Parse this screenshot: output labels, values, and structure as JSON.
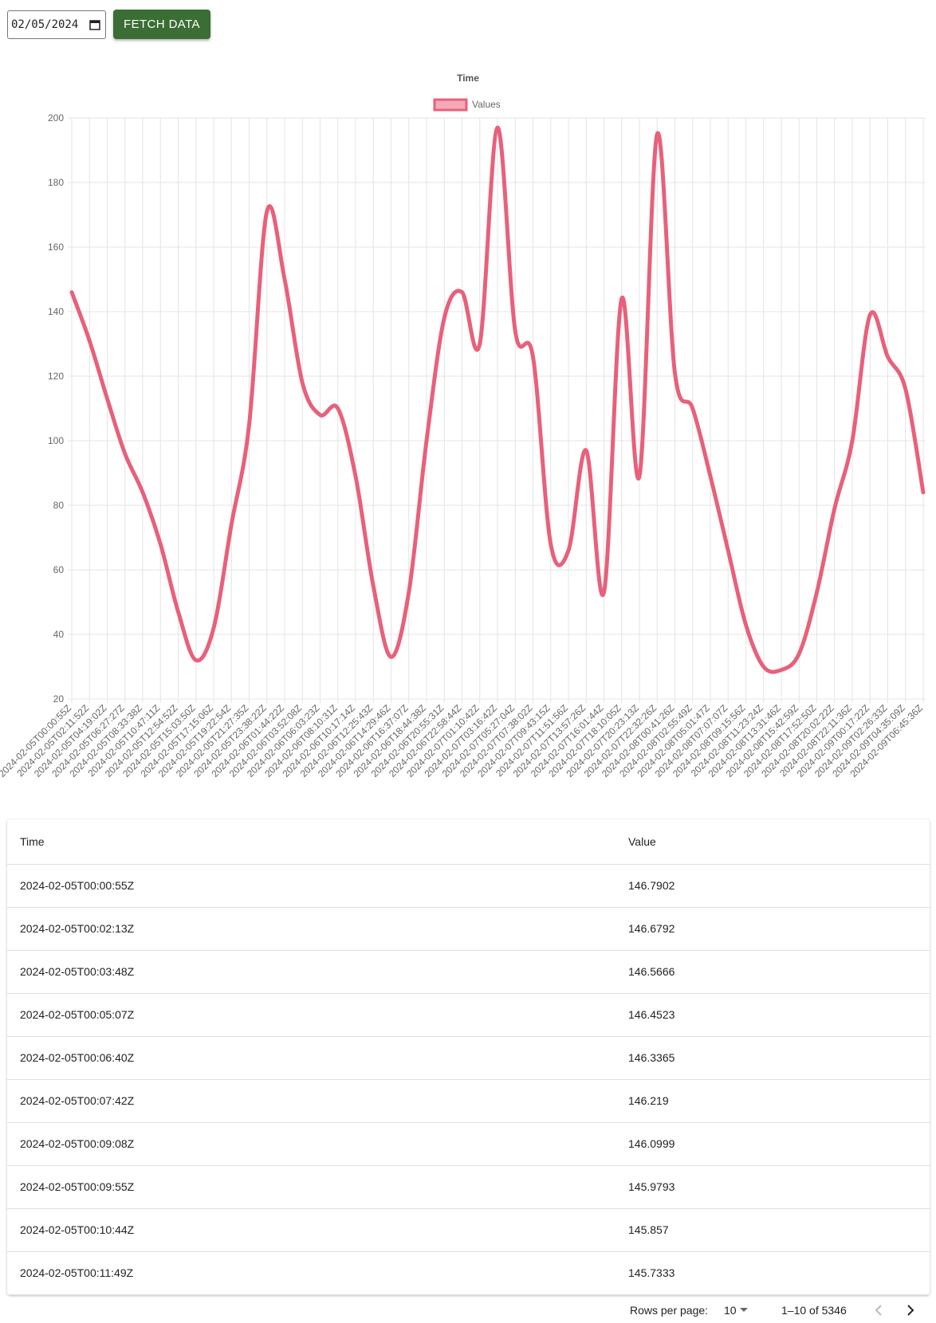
{
  "controls": {
    "date": "02/05/2024",
    "button": "FETCH DATA"
  },
  "chart_data": {
    "type": "line",
    "title": "Time",
    "categories": [
      "2024-02-05T00:00:55Z",
      "2024-02-05T02:11:52Z",
      "2024-02-05T04:19:02Z",
      "2024-02-05T06:27:27Z",
      "2024-02-05T08:33:38Z",
      "2024-02-05T10:47:11Z",
      "2024-02-05T12:54:52Z",
      "2024-02-05T15:03:50Z",
      "2024-02-05T17:15:06Z",
      "2024-02-05T19:22:54Z",
      "2024-02-05T21:27:35Z",
      "2024-02-05T23:38:22Z",
      "2024-02-06T01:44:22Z",
      "2024-02-06T03:52:08Z",
      "2024-02-06T06:03:23Z",
      "2024-02-06T08:10:31Z",
      "2024-02-06T10:17:14Z",
      "2024-02-06T12:25:43Z",
      "2024-02-06T14:29:46Z",
      "2024-02-06T16:37:07Z",
      "2024-02-06T18:44:38Z",
      "2024-02-06T20:55:31Z",
      "2024-02-06T22:58:44Z",
      "2024-02-07T01:10:42Z",
      "2024-02-07T03:16:42Z",
      "2024-02-07T05:27:04Z",
      "2024-02-07T07:38:02Z",
      "2024-02-07T09:43:15Z",
      "2024-02-07T11:51:56Z",
      "2024-02-07T13:57:26Z",
      "2024-02-07T16:01:44Z",
      "2024-02-07T18:10:05Z",
      "2024-02-07T20:23:13Z",
      "2024-02-07T22:32:26Z",
      "2024-02-08T00:41:26Z",
      "2024-02-08T02:55:49Z",
      "2024-02-08T05:01:47Z",
      "2024-02-08T07:07:07Z",
      "2024-02-08T09:15:56Z",
      "2024-02-08T11:23:24Z",
      "2024-02-08T13:31:46Z",
      "2024-02-08T15:42:59Z",
      "2024-02-08T17:52:50Z",
      "2024-02-08T20:02:22Z",
      "2024-02-08T22:11:36Z",
      "2024-02-09T00:17:22Z",
      "2024-02-09T02:26:33Z",
      "2024-02-09T04:35:09Z",
      "2024-02-09T06:45:36Z"
    ],
    "series": [
      {
        "name": "Values",
        "color": "#e8607a",
        "fill": "#f4a9b8",
        "values": [
          146,
          131,
          113,
          96,
          84,
          68,
          47,
          32,
          42,
          74,
          105,
          171,
          150,
          118,
          108,
          110,
          89,
          55,
          33,
          53,
          100,
          138,
          146,
          130,
          197,
          134,
          126,
          68,
          66,
          97,
          53,
          144,
          89,
          195,
          121,
          110,
          89,
          66,
          43,
          30,
          29,
          34,
          53,
          79,
          100,
          139,
          126,
          116,
          84
        ]
      }
    ],
    "ylim": [
      20,
      200
    ],
    "yticks": [
      20,
      40,
      60,
      80,
      100,
      120,
      140,
      160,
      180,
      200
    ],
    "grid": true,
    "legend": "top"
  },
  "table": {
    "header": [
      "Time",
      "Value"
    ],
    "rows": [
      [
        "2024-02-05T00:00:55Z",
        146.7902
      ],
      [
        "2024-02-05T00:02:13Z",
        146.6792
      ],
      [
        "2024-02-05T00:03:48Z",
        146.5666
      ],
      [
        "2024-02-05T00:05:07Z",
        146.4523
      ],
      [
        "2024-02-05T00:06:40Z",
        146.3365
      ],
      [
        "2024-02-05T00:07:42Z",
        146.219
      ],
      [
        "2024-02-05T00:09:08Z",
        146.0999
      ],
      [
        "2024-02-05T00:09:55Z",
        145.9793
      ],
      [
        "2024-02-05T00:10:44Z",
        145.857
      ],
      [
        "2024-02-05T00:11:49Z",
        145.7333
      ]
    ]
  },
  "pagination": {
    "rows_per_page_label": "Rows per page:",
    "rows_per_page": "10",
    "range": "1–10 of 5346"
  }
}
